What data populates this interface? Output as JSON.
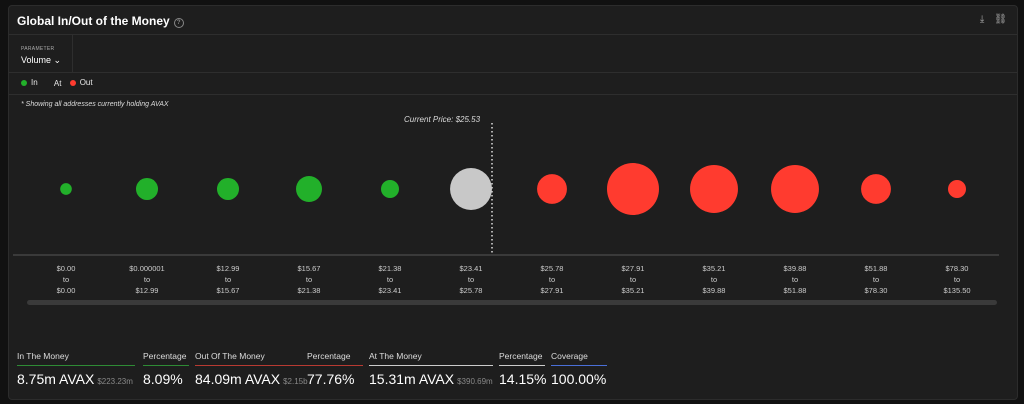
{
  "header": {
    "title": "Global In/Out of the Money",
    "help_icon": "question-circle-icon",
    "download_icon": "download-icon",
    "link_icon": "link-icon"
  },
  "parameter": {
    "label": "PARAMETER",
    "value": "Volume"
  },
  "legend": [
    {
      "label": "In",
      "color": "#22b02a"
    },
    {
      "label": "At",
      "color": ""
    },
    {
      "label": "Out",
      "color": "#ff3b2f"
    }
  ],
  "note": "* Showing all addresses currently holding AVAX",
  "current_price": "Current Price: $25.53",
  "colors": {
    "in": "#22b02a",
    "at": "#c8c8c8",
    "out": "#ff3b2f"
  },
  "buckets": [
    {
      "from": "$0.00",
      "to": "$0.00",
      "status": "in",
      "volume_relative": 0.05
    },
    {
      "from": "$0.000001",
      "to": "$12.99",
      "status": "in",
      "volume_relative": 0.18
    },
    {
      "from": "$12.99",
      "to": "$15.67",
      "status": "in",
      "volume_relative": 0.18
    },
    {
      "from": "$15.67",
      "to": "$21.38",
      "status": "in",
      "volume_relative": 0.25
    },
    {
      "from": "$21.38",
      "to": "$23.41",
      "status": "in",
      "volume_relative": 0.12
    },
    {
      "from": "$23.41",
      "to": "$25.78",
      "status": "at",
      "volume_relative": 0.65
    },
    {
      "from": "$25.78",
      "to": "$27.91",
      "status": "out",
      "volume_relative": 0.33
    },
    {
      "from": "$27.91",
      "to": "$35.21",
      "status": "out",
      "volume_relative": 1.0
    },
    {
      "from": "$35.21",
      "to": "$39.88",
      "status": "out",
      "volume_relative": 0.85
    },
    {
      "from": "$39.88",
      "to": "$51.88",
      "status": "out",
      "volume_relative": 0.85
    },
    {
      "from": "$51.88",
      "to": "$78.30",
      "status": "out",
      "volume_relative": 0.33
    },
    {
      "from": "$78.30",
      "to": "$135.50",
      "status": "out",
      "volume_relative": 0.12
    }
  ],
  "to_word": "to",
  "stats": [
    {
      "label": "In The Money",
      "value": "8.75m AVAX",
      "sub": "$223.23m",
      "color": "#2e8b35"
    },
    {
      "label": "Percentage",
      "value": "8.09%",
      "sub": "",
      "color": "#2e8b35"
    },
    {
      "label": "Out Of The Money",
      "value": "84.09m AVAX",
      "sub": "$2.15b",
      "color": "#b83a32"
    },
    {
      "label": "Percentage",
      "value": "77.76%",
      "sub": "",
      "color": "#b83a32"
    },
    {
      "label": "At The Money",
      "value": "15.31m AVAX",
      "sub": "$390.69m",
      "color": "#cccccc"
    },
    {
      "label": "Percentage",
      "value": "14.15%",
      "sub": "",
      "color": "#cccccc"
    },
    {
      "label": "Coverage",
      "value": "100.00%",
      "sub": "",
      "color": "#4a6fd8"
    }
  ]
}
